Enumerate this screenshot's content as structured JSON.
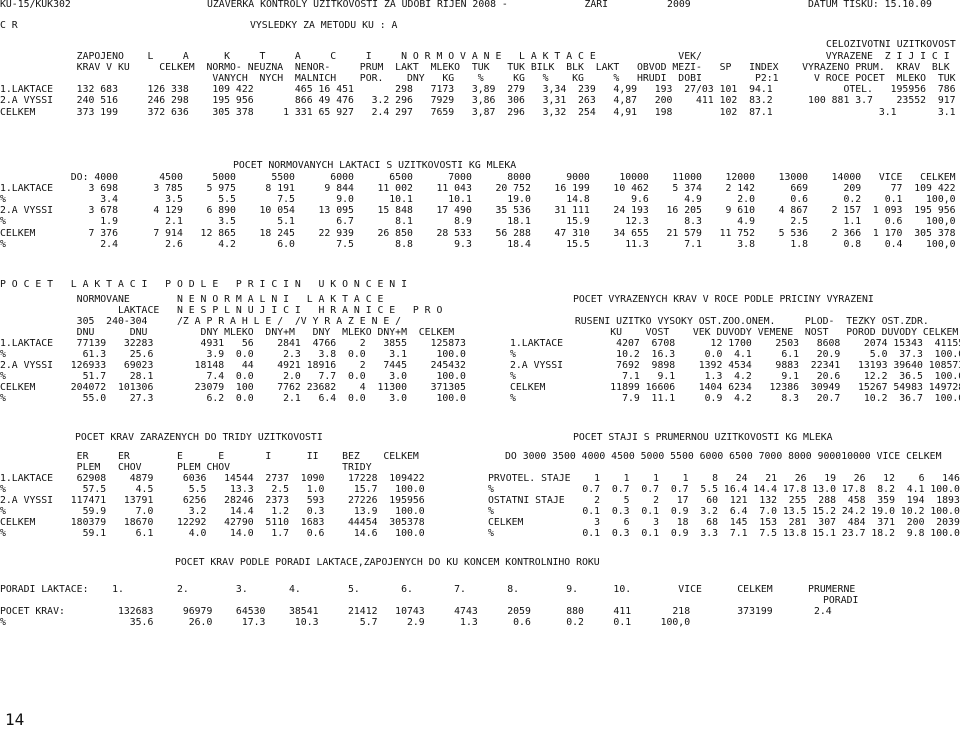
{
  "sections": [
    [
      "KU-15/KUK302"
    ],
    [
      "UZAVERKA KONTROLY UZITKOVOSTI ZA UDOBI RIJEN 2008 -             ZARI          2009"
    ],
    [
      "DATUM TISKU: 15.10.09"
    ],
    [
      "C R"
    ],
    [
      "VYSLEDKY ZA METODU KU : A"
    ],
    [
      "CELOZIVOTNI UZITKOVOST"
    ],
    [
      "             ZAPOJENO    L     A      K     T     A     C     I     N O R M O V A N E   L A K T A C E              VEK/                     VYRAZENE  Z I J I C I",
      "             KRAV V KU     CELKEM  NORMO- NEUZNA  NENOR-     PRUM  LAKT  MLEKO  TUK   TUK BILK  BLK  LAKT   OBVOD MEZI-   SP   INDEX    VYRAZENO PRUM.  KRAV  BLK",
      "                                    VANYCH  NYCH  MALNICH    POR.    DNY   KG    %     KG   %    KG     %   HRUDI  DOBI         P2:1      V ROCE POCET  MLEKO  TUK",
      "1.LAKTACE    132 683     126 338    109 422       465 16 451       298   7173   3,89  279   3,34  239   4,99   193  27/03 101  94.1            OTEL.   195956  786",
      "2.A VYSSI    240 516     246 298    195 956       866 49 476   3.2 296   7929   3,86  306   3,31  263   4,87   200    411 102  83.2      100 881 3.7    23552  917",
      "CELKEM       373 199     372 636    305 378     1 331 65 927   2.4 297   7659   3,87  296   3,32  254   4,91   198        102  87.1                  3.1       3.1"
    ],
    [
      "POCET NORMOVANYCH LAKTACI S UZITKOVOSTI KG MLEKA"
    ],
    [
      "            DO: 4000       4500     5000      5500      6000      6500      7000      8000      9000     10000    11000    12000    13000    14000   VICE   CELKEM",
      "1.LAKTACE      3 698      3 785    5 975     8 191     9 844    11 002    11 043    20 752    16 199    10 462    5 374    2 142      669      209     77  109 422",
      "%                3.4        3.5      5.5       7.5       9.0      10.1      10.1      19.0      14.8       9.6      4.9      2.0      0.6      0.2    0.1    100,0",
      "2.A VYSSI      3 678      4 129    6 890    10 054    13 095    15 848    17 490    35 536    31 111    24 193   16 205    9 610    4 867    2 157  1 093  195 956",
      "%                1.9        2.1      3.5       5.1       6.7       8.1       8.9      18.1      15.9      12.3      8.3      4.9      2.5      1.1    0.6    100,0",
      "CELKEM         7 376      7 914   12 865    18 245    22 939    26 850    28 533    56 288    47 310    34 655   21 579   11 752    5 536    2 366  1 170  305 378",
      "%                2.4        2.6      4.2       6.0       7.5       8.8       9.3      18.4      15.5      11.3      7.1      3.8      1.8      0.8    0.4    100,0"
    ],
    [
      "P O C E T   L A K T A C I   P O D L E   P R I C I N   U K O N C E N I"
    ],
    [
      "             NORMOVANE        N E N O R M A L N I   L A K T A C E",
      "                    LAKTACE   N E S P L N U J I C I   H R A N I C E   P R O",
      "             305  240-304     /Z A P R A H L E /  /V Y R A Z E N E /",
      "             DNU      DNU         DNY MLEKO  DNY+M   DNY  MLEKO DNY+M  CELKEM",
      "1.LAKTACE    77139   32283        4931   56    2841  4766    2   3855    125873",
      "%             61.3    25.6         3.9  0.0     2.3   3.8  0.0    3.1     100.0",
      "2.A VYSSI   126933   69023       18148   44    4921 18916    2   7445    245432",
      "%             51.7    28.1         7.4  0.0     2.0   7.7  0.0    3.0     100.0",
      "CELKEM      204072  101306       23079  100    7762 23682    4  11300    371305",
      "%             55.0    27.3         6.2  0.0     2.1   6.4  0.0    3.0     100.0"
    ],
    [
      "POCET VYRAZENYCH KRAV V ROCE PODLE PRICINY VYRAZENI"
    ],
    [
      "           RUSENI UZITKO VYSOKY OST.ZOO.ONEM.     PLOD-  TEZKY OST.ZDR.",
      "                 KU    VOST    VEK DUVODY VEMENE  NOST   POROD DUVODY CELKEM",
      "1.LAKTACE         4207  6708      12 1700    2503   8608    2074 15343  41155",
      "%                 10.2  16.3     0.0  4.1     6.1   20.9     5.0  37.3  100.0",
      "2.A VYSSI         7692  9898    1392 4534    9883  22341   13193 39640 108573",
      "%                  7.1   9.1     1.3  4.2     9.1   20.6    12.2  36.5  100.0",
      "CELKEM           11899 16606    1404 6234   12386  30949   15267 54983 149728",
      "%                  7.9  11.1     0.9  4.2     8.3   20.7    10.2  36.7  100.0"
    ],
    [
      "POCET KRAV ZARAZENYCH DO TRIDY UZITKOVOSTI"
    ],
    [
      "             ER     ER        E      E       I      II    BEZ    CELKEM",
      "             PLEM   CHOV      PLEM CHOV                   TRIDY",
      "1.LAKTACE    62908    4879     6036   14544  2737  1090    17228  109422",
      "%             57.5     4.5      5.5    13.3   2.5   1.0     15.7   100.0",
      "2.A VYSSI   117471   13791     6256   28246  2373   593    27226  195956",
      "%             59.9     7.0      3.2    14.4   1.2   0.3     13.9   100.0",
      "CELKEM      180379   18670    12292   42790  5110  1683    44454  305378",
      "%             59.1     6.1      4.0    14.0   1.7   0.6     14.6   100.0"
    ],
    [
      "POCET STAJI S PRUMERNOU UZITKOVOSTI KG MLEKA"
    ],
    [
      "DO 3000 3500 4000 4500 5000 5500 6000 6500 7000 8000 900010000 VICE CELKEM"
    ],
    [
      "PRVOTEL. STAJE    1    1    1    1    8   24   21   26   19   26   12    6   146",
      "%               0.7  0.7  0.7  0.7  5.5 16.4 14.4 17.8 13.0 17.8  8.2  4.1 100.0",
      "OSTATNI STAJE     2    5    2   17   60  121  132  255  288  458  359  194  1893",
      "%               0.1  0.3  0.1  0.9  3.2  6.4  7.0 13.5 15.2 24.2 19.0 10.2 100.0",
      "CELKEM            3    6    3   18   68  145  153  281  307  484  371  200  2039",
      "%               0.1  0.3  0.1  0.9  3.3  7.1  7.5 13.8 15.1 23.7 18.2  9.8 100.0"
    ],
    [
      "POCET KRAV PODLE PORADI LAKTACE,ZAPOJENYCH DO KU KONCEM KONTROLNIHO ROKU"
    ],
    [
      "PORADI LAKTACE:    1.         2.        3.       4.        5.       6.       7.       8.        9.      10.        VICE      CELKEM      PRUMERNE"
    ],
    [
      "PORADI"
    ],
    [
      "POCET KRAV:         132683     96979    64530    38541     21412   10743     4743     2059      880     411       218        373199       2.4",
      "%                     35.6      26.0     17.3     10.3       5.7     2.9      1.3      0.6      0.2     0.1     100,0"
    ],
    [
      "14"
    ]
  ]
}
